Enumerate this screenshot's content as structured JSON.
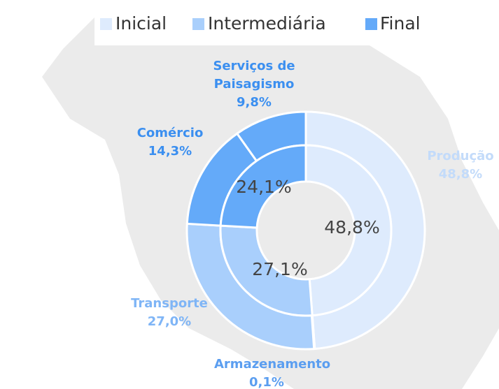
{
  "chart_data": {
    "type": "nested-donut",
    "series": [
      {
        "name": "Inicial",
        "color": "#deebfd",
        "value": 48.8,
        "value_label": "48,8%"
      },
      {
        "name": "Intermediária",
        "color": "#a9cffc",
        "value": 27.1,
        "value_label": "27,1%"
      },
      {
        "name": "Final",
        "color": "#64aaf9",
        "value": 24.1,
        "value_label": "24,1%"
      }
    ],
    "categories": [
      "Produção",
      "Armazenamento",
      "Transporte",
      "Comércio",
      "Serviços de Paisagismo"
    ],
    "values": [
      48.8,
      0.1,
      27.0,
      14.3,
      9.8
    ],
    "value_labels": [
      "48,8%",
      "0,1%",
      "27,0%",
      "14,3%",
      "9,8%"
    ],
    "colors": [
      "#deebfd",
      "#a9cffc",
      "#a9cffc",
      "#64aaf9",
      "#64aaf9"
    ]
  }
}
